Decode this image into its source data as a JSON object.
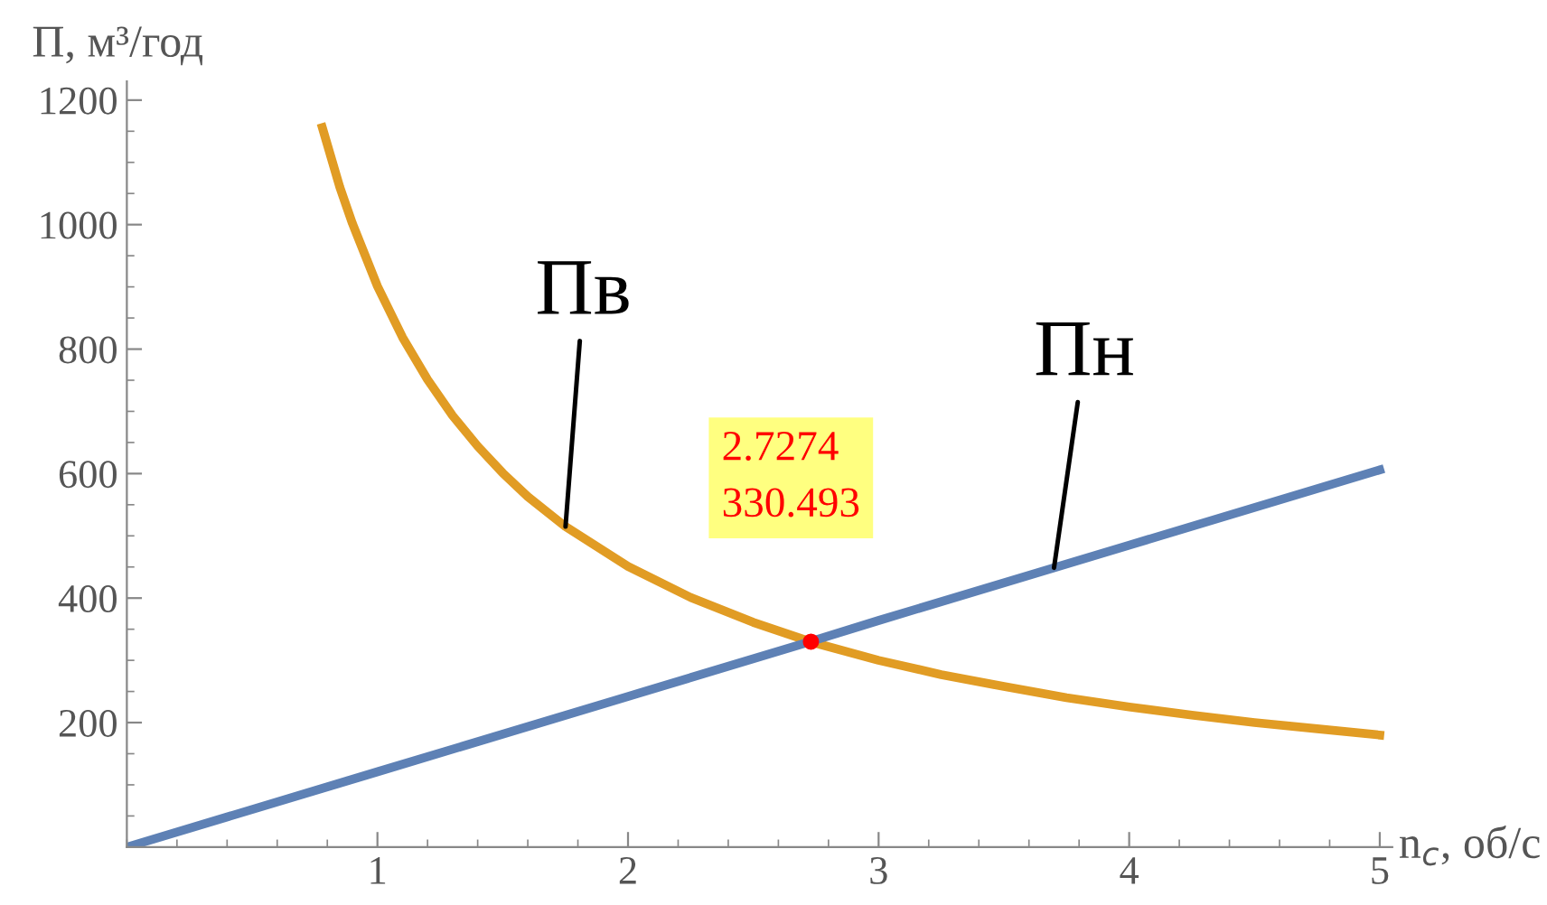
{
  "chart_data": {
    "type": "line",
    "xlabel": "n$_{c}$, об/с",
    "ylabel": "П, м³/год",
    "xlim": [
      0,
      5.05
    ],
    "ylim": [
      0,
      1230
    ],
    "xticks": [
      1,
      2,
      3,
      4,
      5
    ],
    "yticks": [
      200,
      400,
      600,
      800,
      1000,
      1200
    ],
    "grid": false,
    "legend": false,
    "marker": "none",
    "line_style": "solid",
    "series": [
      {
        "name": "Пв",
        "color": "#e19c24",
        "x": [
          0.78,
          0.85,
          0.9,
          1,
          1.1,
          1.2,
          1.3,
          1.4,
          1.5,
          1.6,
          1.75,
          2,
          2.25,
          2.5,
          2.7274,
          3,
          3.25,
          3.5,
          3.75,
          4,
          4.25,
          4.5,
          4.75,
          5
        ],
        "values": [
          1156,
          1060,
          1002,
          901,
          819,
          751,
          693,
          644,
          601,
          563,
          515,
          451,
          401,
          361,
          330,
          300,
          277,
          258,
          240,
          225,
          212,
          200,
          190,
          180
        ]
      },
      {
        "name": "Пн",
        "color": "#5e81b5",
        "x": [
          0,
          1,
          2,
          2.7274,
          3,
          4,
          5
        ],
        "values": [
          0,
          121,
          242,
          330,
          364,
          485,
          606
        ]
      },
      {
        "type": "scatter",
        "color": "#ff0000",
        "marker": "circle",
        "x": [
          2.73
        ],
        "values": [
          330
        ]
      }
    ],
    "annotations": [
      "2.7274\n330.493"
    ]
  }
}
